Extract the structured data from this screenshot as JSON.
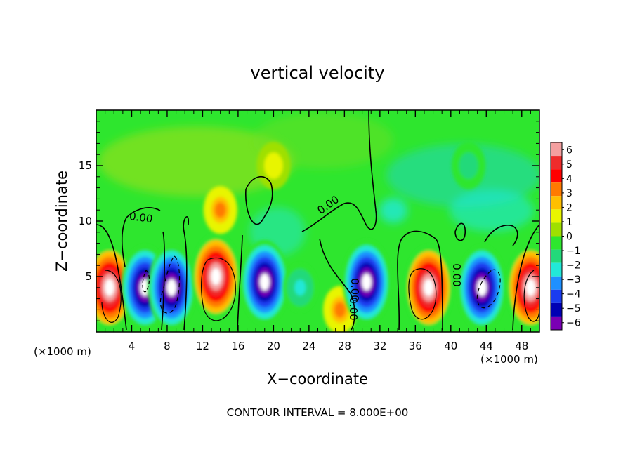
{
  "chart_data": {
    "type": "heatmap",
    "title": "vertical velocity",
    "xlabel": "X−coordinate",
    "ylabel": "Z−coordinate",
    "x_unit_left": "(×1000 m)",
    "x_unit_right": "(×1000 m)",
    "footer": "CONTOUR INTERVAL = 8.000E+00",
    "xlim": [
      0,
      50
    ],
    "ylim": [
      0,
      20
    ],
    "x_ticks": [
      4,
      8,
      12,
      16,
      20,
      24,
      28,
      32,
      36,
      40,
      44,
      48
    ],
    "y_ticks": [
      5,
      10,
      15
    ],
    "contour_labels": [
      "0.00",
      "0.00",
      "0.00",
      "0.00",
      "0.00"
    ],
    "colorbar": {
      "labels": [
        "6",
        "5",
        "4",
        "3",
        "2",
        "1",
        "0",
        "−1",
        "−2",
        "−3",
        "−4",
        "−5",
        "−6"
      ],
      "colors": [
        "#f4a0a0",
        "#ee2c2c",
        "#ff0000",
        "#ff7a00",
        "#ffbf00",
        "#e8f500",
        "#9fe000",
        "#2ee62e",
        "#22d97a",
        "#22e8d8",
        "#1e90ff",
        "#1a3cf0",
        "#0000b4",
        "#7a00b4"
      ]
    },
    "cells": [
      {
        "x": 1.5,
        "z": 4,
        "value": 6
      },
      {
        "x": 5.5,
        "z": 4,
        "value": -6
      },
      {
        "x": 8.5,
        "z": 4,
        "value": -6
      },
      {
        "x": 13.5,
        "z": 5,
        "value": 6
      },
      {
        "x": 19,
        "z": 4.5,
        "value": -5
      },
      {
        "x": 23,
        "z": 4,
        "value": -3
      },
      {
        "x": 27.5,
        "z": 2,
        "value": 3
      },
      {
        "x": 30.5,
        "z": 4.5,
        "value": -5
      },
      {
        "x": 37.5,
        "z": 4,
        "value": 6
      },
      {
        "x": 43.5,
        "z": 4,
        "value": -6
      },
      {
        "x": 49,
        "z": 4,
        "value": 6
      },
      {
        "x": 14,
        "z": 11,
        "value": 3
      },
      {
        "x": 20,
        "z": 15,
        "value": 1
      },
      {
        "x": 42,
        "z": 15,
        "value": -2
      }
    ]
  }
}
